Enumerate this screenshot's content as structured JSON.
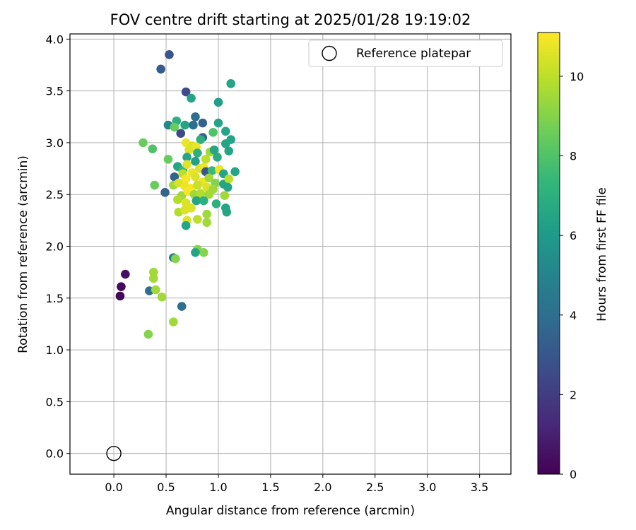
{
  "chart_data": {
    "type": "scatter",
    "title": "FOV centre drift starting at 2025/01/28 19:19:02",
    "xlabel": "Angular distance from reference (arcmin)",
    "ylabel": "Rotation from reference (arcmin)",
    "xlim": [
      -0.42,
      3.8
    ],
    "ylim": [
      -0.2,
      4.05
    ],
    "xticks": [
      "0.0",
      "0.5",
      "1.0",
      "1.5",
      "2.0",
      "2.5",
      "3.0",
      "3.5"
    ],
    "yticks": [
      "0.0",
      "0.5",
      "1.0",
      "1.5",
      "2.0",
      "2.5",
      "3.0",
      "3.5",
      "4.0"
    ],
    "grid": true,
    "legend": {
      "position": "top-right",
      "entries": [
        "Reference platepar"
      ]
    },
    "reference_point": {
      "x": 0.0,
      "y": 0.0
    },
    "colorbar": {
      "label": "Hours from first FF file",
      "range": [
        0,
        11.1
      ],
      "ticks": [
        "0",
        "2",
        "4",
        "6",
        "8",
        "10"
      ],
      "colormap": [
        "#440154",
        "#482878",
        "#3e4989",
        "#31688e",
        "#26828e",
        "#1f9e89",
        "#35b779",
        "#6ece58",
        "#b5de2b",
        "#fde725"
      ]
    },
    "points": [
      {
        "x": 0.06,
        "y": 1.52,
        "h": 0.2
      },
      {
        "x": 0.07,
        "y": 1.61,
        "h": 0.3
      },
      {
        "x": 0.11,
        "y": 1.73,
        "h": 0.5
      },
      {
        "x": 0.53,
        "y": 3.85,
        "h": 3.0
      },
      {
        "x": 0.45,
        "y": 3.71,
        "h": 3.2
      },
      {
        "x": 0.69,
        "y": 3.49,
        "h": 2.5
      },
      {
        "x": 0.74,
        "y": 3.43,
        "h": 6.5
      },
      {
        "x": 1.12,
        "y": 3.57,
        "h": 6.5
      },
      {
        "x": 1.0,
        "y": 3.39,
        "h": 6.2
      },
      {
        "x": 0.78,
        "y": 3.25,
        "h": 4.0
      },
      {
        "x": 0.6,
        "y": 3.21,
        "h": 7.0
      },
      {
        "x": 0.52,
        "y": 3.17,
        "h": 5.0
      },
      {
        "x": 0.68,
        "y": 3.17,
        "h": 6.5
      },
      {
        "x": 0.76,
        "y": 3.17,
        "h": 4.0
      },
      {
        "x": 0.85,
        "y": 3.19,
        "h": 3.5
      },
      {
        "x": 0.58,
        "y": 3.15,
        "h": 8.5
      },
      {
        "x": 1.0,
        "y": 3.19,
        "h": 6.5
      },
      {
        "x": 1.07,
        "y": 3.11,
        "h": 6.5
      },
      {
        "x": 0.64,
        "y": 3.09,
        "h": 2.5
      },
      {
        "x": 0.95,
        "y": 3.1,
        "h": 8.0
      },
      {
        "x": 0.85,
        "y": 3.05,
        "h": 3.5
      },
      {
        "x": 0.83,
        "y": 3.03,
        "h": 7.0
      },
      {
        "x": 1.12,
        "y": 3.03,
        "h": 6.5
      },
      {
        "x": 1.07,
        "y": 2.99,
        "h": 6.5
      },
      {
        "x": 0.28,
        "y": 3.0,
        "h": 8.5
      },
      {
        "x": 0.37,
        "y": 2.94,
        "h": 8.0
      },
      {
        "x": 0.52,
        "y": 2.84,
        "h": 8.5
      },
      {
        "x": 0.69,
        "y": 3.0,
        "h": 10.8
      },
      {
        "x": 0.75,
        "y": 2.97,
        "h": 10.5
      },
      {
        "x": 0.72,
        "y": 2.93,
        "h": 10.5
      },
      {
        "x": 0.79,
        "y": 2.96,
        "h": 10.8
      },
      {
        "x": 0.8,
        "y": 2.9,
        "h": 7.0
      },
      {
        "x": 0.92,
        "y": 2.91,
        "h": 9.5
      },
      {
        "x": 0.96,
        "y": 2.93,
        "h": 6.5
      },
      {
        "x": 1.1,
        "y": 2.92,
        "h": 6.5
      },
      {
        "x": 0.7,
        "y": 2.86,
        "h": 6.5
      },
      {
        "x": 0.88,
        "y": 2.84,
        "h": 10.0
      },
      {
        "x": 0.99,
        "y": 2.86,
        "h": 6.8
      },
      {
        "x": 0.78,
        "y": 2.82,
        "h": 6.2
      },
      {
        "x": 0.61,
        "y": 2.77,
        "h": 6.5
      },
      {
        "x": 0.66,
        "y": 2.73,
        "h": 7.5
      },
      {
        "x": 0.7,
        "y": 2.79,
        "h": 10.6
      },
      {
        "x": 0.75,
        "y": 2.71,
        "h": 10.8
      },
      {
        "x": 0.82,
        "y": 2.75,
        "h": 10.5
      },
      {
        "x": 0.86,
        "y": 2.76,
        "h": 10.8
      },
      {
        "x": 0.88,
        "y": 2.72,
        "h": 3.0
      },
      {
        "x": 0.94,
        "y": 2.73,
        "h": 7.5
      },
      {
        "x": 1.01,
        "y": 2.74,
        "h": 10.8
      },
      {
        "x": 1.05,
        "y": 2.7,
        "h": 6.5
      },
      {
        "x": 1.16,
        "y": 2.72,
        "h": 6.5
      },
      {
        "x": 0.58,
        "y": 2.67,
        "h": 3.5
      },
      {
        "x": 0.66,
        "y": 2.7,
        "h": 10.0
      },
      {
        "x": 0.69,
        "y": 2.65,
        "h": 11.0
      },
      {
        "x": 0.78,
        "y": 2.67,
        "h": 10.5
      },
      {
        "x": 0.85,
        "y": 2.62,
        "h": 10.8
      },
      {
        "x": 0.91,
        "y": 2.66,
        "h": 9.5
      },
      {
        "x": 0.97,
        "y": 2.61,
        "h": 9.0
      },
      {
        "x": 1.05,
        "y": 2.6,
        "h": 6.5
      },
      {
        "x": 1.1,
        "y": 2.65,
        "h": 10.0
      },
      {
        "x": 0.39,
        "y": 2.59,
        "h": 8.5
      },
      {
        "x": 0.57,
        "y": 2.59,
        "h": 9.5
      },
      {
        "x": 0.62,
        "y": 2.61,
        "h": 10.5
      },
      {
        "x": 0.68,
        "y": 2.58,
        "h": 10.8
      },
      {
        "x": 0.74,
        "y": 2.56,
        "h": 11.0
      },
      {
        "x": 0.8,
        "y": 2.59,
        "h": 10.2
      },
      {
        "x": 0.89,
        "y": 2.57,
        "h": 10.5
      },
      {
        "x": 0.95,
        "y": 2.55,
        "h": 9.5
      },
      {
        "x": 1.09,
        "y": 2.57,
        "h": 6.5
      },
      {
        "x": 0.49,
        "y": 2.52,
        "h": 3.5
      },
      {
        "x": 0.65,
        "y": 2.49,
        "h": 9.5
      },
      {
        "x": 0.71,
        "y": 2.53,
        "h": 11.0
      },
      {
        "x": 0.77,
        "y": 2.5,
        "h": 9.5
      },
      {
        "x": 0.83,
        "y": 2.51,
        "h": 9.8
      },
      {
        "x": 0.91,
        "y": 2.5,
        "h": 9.5
      },
      {
        "x": 1.06,
        "y": 2.49,
        "h": 9.5
      },
      {
        "x": 0.61,
        "y": 2.45,
        "h": 9.8
      },
      {
        "x": 0.69,
        "y": 2.42,
        "h": 10.5
      },
      {
        "x": 0.79,
        "y": 2.44,
        "h": 6.5
      },
      {
        "x": 0.86,
        "y": 2.44,
        "h": 7.0
      },
      {
        "x": 0.98,
        "y": 2.41,
        "h": 7.0
      },
      {
        "x": 1.07,
        "y": 2.37,
        "h": 6.5
      },
      {
        "x": 1.08,
        "y": 2.33,
        "h": 6.5
      },
      {
        "x": 0.62,
        "y": 2.33,
        "h": 9.8
      },
      {
        "x": 0.68,
        "y": 2.35,
        "h": 10.5
      },
      {
        "x": 0.74,
        "y": 2.37,
        "h": 10.5
      },
      {
        "x": 0.89,
        "y": 2.31,
        "h": 9.5
      },
      {
        "x": 0.7,
        "y": 2.25,
        "h": 10.5
      },
      {
        "x": 0.8,
        "y": 2.26,
        "h": 10.0
      },
      {
        "x": 0.89,
        "y": 2.23,
        "h": 9.5
      },
      {
        "x": 0.69,
        "y": 2.2,
        "h": 6.5
      },
      {
        "x": 0.8,
        "y": 1.97,
        "h": 9.0
      },
      {
        "x": 0.86,
        "y": 1.94,
        "h": 9.0
      },
      {
        "x": 0.78,
        "y": 1.94,
        "h": 6.5
      },
      {
        "x": 0.57,
        "y": 1.89,
        "h": 4.5
      },
      {
        "x": 0.59,
        "y": 1.88,
        "h": 9.0
      },
      {
        "x": 0.38,
        "y": 1.75,
        "h": 9.5
      },
      {
        "x": 0.38,
        "y": 1.69,
        "h": 9.5
      },
      {
        "x": 0.34,
        "y": 1.57,
        "h": 4.0
      },
      {
        "x": 0.4,
        "y": 1.58,
        "h": 9.5
      },
      {
        "x": 0.46,
        "y": 1.51,
        "h": 9.5
      },
      {
        "x": 0.65,
        "y": 1.42,
        "h": 4.0
      },
      {
        "x": 0.57,
        "y": 1.27,
        "h": 9.5
      },
      {
        "x": 0.33,
        "y": 1.15,
        "h": 9.0
      }
    ]
  }
}
